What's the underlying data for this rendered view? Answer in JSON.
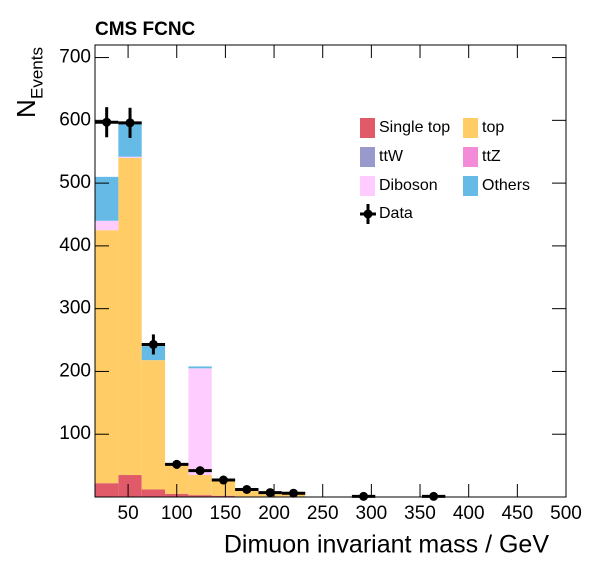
{
  "chart_data": {
    "type": "histogram",
    "title": "CMS FCNC",
    "x_label": "Dimuon invariant mass / GeV",
    "y_label": "N",
    "y_label_sub": "Events",
    "bins": [
      16,
      40,
      64,
      88,
      112,
      136,
      160,
      184,
      208,
      232
    ],
    "series": [
      {
        "name": "Single top",
        "color": "#e05a6a",
        "values": [
          22,
          35,
          12,
          5,
          3,
          2,
          1,
          1,
          1
        ]
      },
      {
        "name": "top",
        "color": "#ffcc66",
        "values": [
          403,
          505,
          206,
          45,
          32,
          26,
          11,
          6,
          5
        ]
      },
      {
        "name": "ttW",
        "color": "#9999cc",
        "values": [
          0,
          0,
          0,
          0,
          0,
          0,
          0,
          0,
          0
        ]
      },
      {
        "name": "ttZ",
        "color": "#f38bd8",
        "values": [
          0,
          0,
          0,
          0,
          0,
          0,
          0,
          0,
          0
        ]
      },
      {
        "name": "Diboson",
        "color": "#ffccff",
        "values": [
          15,
          2,
          0,
          0,
          170,
          0,
          0,
          0,
          0
        ]
      },
      {
        "name": "Others",
        "color": "#66bbe6",
        "values": [
          70,
          55,
          25,
          0,
          3,
          0,
          0,
          0,
          0
        ]
      }
    ],
    "data": {
      "name": "Data",
      "color": "#000000",
      "x": [
        28,
        52,
        76,
        100,
        124,
        148,
        172,
        196,
        220,
        292,
        364
      ],
      "xerr": [
        12,
        12,
        12,
        12,
        12,
        12,
        12,
        12,
        12,
        12,
        12
      ],
      "values": [
        597,
        596,
        243,
        52,
        42,
        27,
        12,
        7,
        6,
        1,
        1
      ],
      "yerr": [
        24,
        24,
        16,
        7,
        6,
        5,
        3.5,
        2.6,
        2.4,
        1,
        1
      ]
    },
    "xlim": [
      16,
      500
    ],
    "ylim": [
      0,
      720
    ],
    "xticks": [
      50,
      100,
      150,
      200,
      250,
      300,
      350,
      400,
      450,
      500
    ],
    "yticks": [
      100,
      200,
      300,
      400,
      500,
      600,
      700
    ]
  }
}
